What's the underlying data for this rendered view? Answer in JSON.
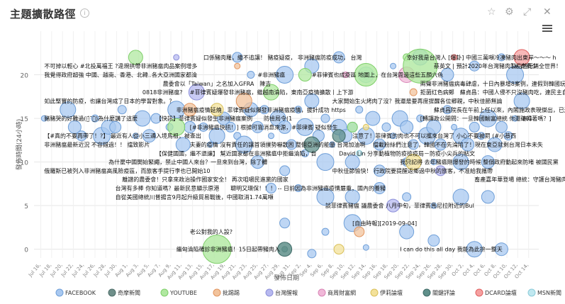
{
  "header": {
    "title": "主題擴散路徑",
    "info_icon": "info-icon",
    "toolbar": [
      "star-icon",
      "gear-icon",
      "expand-icon",
      "close-icon"
    ]
  },
  "chart_data": {
    "type": "scatter",
    "xlabel": "發佈日期",
    "ylabel": "發佈時間(24小時)",
    "x_ticks": [
      "Jul 16,",
      "Jul 18,",
      "Jul 20,",
      "Jul 22,",
      "Jul 24,",
      "Jul 26,",
      "Jul 28,",
      "Jul 30,",
      "Aug 1,",
      "Aug 3,",
      "Aug 5,",
      "Aug 7,",
      "Aug 9,",
      "Aug 11,",
      "Aug 13,",
      "Aug 15,",
      "Aug 17,",
      "Aug 19,",
      "Aug 21,",
      "Aug 23,",
      "Aug 25,",
      "Aug 27,",
      "Aug 29,",
      "Aug 31,",
      "Sep 2,",
      "Sep 4,",
      "Sep 6,",
      "Sep 8,",
      "Sep 10,",
      "Sep 12,",
      "Sep 14,",
      "Sep 16,",
      "Sep 18,",
      "Sep 20,",
      "Sep 22,",
      "Sep 24,",
      "Sep 26,",
      "Sep 28,",
      "Sep 30,",
      "Oct 2,",
      "Oct 4,",
      "Oct 6,",
      "Oct 8,",
      "Oct 10,",
      "Oct 12,",
      "Oct 14,"
    ],
    "x_range": [
      15,
      89.5
    ],
    "ylim": [
      -1,
      25
    ],
    "y_ticks": [
      0,
      5,
      10,
      15,
      20
    ],
    "grid": true,
    "legend_position": "bottom",
    "series": [
      {
        "name": "FACEBOOK",
        "color": "#a8c8f0",
        "stroke": "#6f9fd8",
        "points": [
          [
            16.5,
            15
          ],
          [
            20,
            16
          ],
          [
            21,
            14
          ],
          [
            22,
            13
          ],
          [
            24,
            15
          ],
          [
            25,
            13
          ],
          [
            26,
            14
          ],
          [
            27,
            14
          ],
          [
            28,
            16
          ],
          [
            30,
            13
          ],
          [
            31,
            15
          ],
          [
            32,
            13
          ],
          [
            33,
            15
          ],
          [
            35,
            14
          ],
          [
            36,
            16
          ],
          [
            37,
            12
          ],
          [
            38,
            14
          ],
          [
            40,
            14
          ],
          [
            41,
            12
          ],
          [
            42,
            13
          ],
          [
            43,
            15
          ],
          [
            44,
            14
          ],
          [
            45,
            13
          ],
          [
            46,
            12
          ],
          [
            47,
            16
          ],
          [
            48,
            14
          ],
          [
            49,
            16
          ],
          [
            50,
            13
          ],
          [
            51,
            15
          ],
          [
            52,
            14
          ],
          [
            53,
            12
          ],
          [
            54,
            16
          ],
          [
            55,
            14
          ],
          [
            56,
            17
          ],
          [
            57,
            13
          ],
          [
            58,
            15
          ],
          [
            59,
            12
          ],
          [
            60,
            14
          ],
          [
            61,
            13
          ],
          [
            62,
            14
          ],
          [
            63,
            16
          ],
          [
            64,
            13
          ],
          [
            65,
            15
          ],
          [
            66,
            12
          ],
          [
            67,
            14
          ],
          [
            68,
            13
          ],
          [
            69,
            15
          ],
          [
            70,
            14
          ],
          [
            71,
            12
          ],
          [
            72,
            15
          ],
          [
            73,
            13
          ],
          [
            74,
            14
          ],
          [
            75,
            12
          ],
          [
            76,
            16
          ],
          [
            77,
            14
          ],
          [
            78,
            13
          ],
          [
            79,
            12
          ],
          [
            80,
            14
          ],
          [
            81,
            13
          ],
          [
            82,
            15
          ],
          [
            83,
            12
          ],
          [
            84,
            14
          ],
          [
            85,
            13
          ],
          [
            86,
            15
          ],
          [
            87,
            17
          ],
          [
            48,
            10
          ],
          [
            52,
            9
          ],
          [
            55,
            11
          ],
          [
            58,
            10
          ],
          [
            62,
            10
          ],
          [
            66,
            9
          ],
          [
            70,
            10
          ],
          [
            74,
            10
          ],
          [
            78,
            10
          ],
          [
            82,
            10
          ],
          [
            50,
            7
          ],
          [
            54,
            7
          ],
          [
            58,
            6
          ],
          [
            62,
            6
          ],
          [
            66,
            7
          ],
          [
            70,
            6
          ],
          [
            74,
            5
          ],
          [
            78,
            6
          ],
          [
            82,
            6
          ],
          [
            52,
            3
          ],
          [
            58,
            2
          ],
          [
            62,
            3
          ],
          [
            70,
            2
          ],
          [
            74,
            1
          ],
          [
            56,
            -0.5
          ],
          [
            64,
            0.2
          ],
          [
            80,
            0
          ],
          [
            84,
            0
          ],
          [
            45,
            22
          ],
          [
            47,
            20
          ],
          [
            52,
            20
          ],
          [
            56,
            21
          ],
          [
            60,
            22
          ],
          [
            64,
            20
          ],
          [
            68,
            21
          ],
          [
            72,
            22
          ],
          [
            76,
            20
          ],
          [
            80,
            21
          ],
          [
            84,
            22
          ],
          [
            86,
            20
          ]
        ]
      },
      {
        "name": "奇摩新聞",
        "color": "#6f8f8a",
        "stroke": "#4f6f6a",
        "points": []
      },
      {
        "name": "YOUTUBE",
        "color": "#b0e8a0",
        "stroke": "#7fcf6a",
        "points": [
          [
            42,
            0
          ],
          [
            50,
            18
          ],
          [
            55,
            20
          ],
          [
            62,
            14
          ],
          [
            70,
            22
          ],
          [
            36,
            14
          ],
          [
            30,
            22
          ]
        ]
      },
      {
        "name": "批踢踢",
        "color": "#f2c39c",
        "stroke": "#e2955f",
        "points": [
          [
            45,
            21
          ],
          [
            46,
            17
          ],
          [
            38,
            16
          ],
          [
            63,
            2
          ],
          [
            71,
            18
          ]
        ]
      },
      {
        "name": "台灣醒報",
        "color": "#b7b9f0",
        "stroke": "#8c8fd9",
        "points": [
          [
            36,
            22
          ],
          [
            39,
            18
          ],
          [
            68,
            5
          ],
          [
            75,
            9
          ]
        ]
      },
      {
        "name": "商周財富網",
        "color": "#f0b8d8",
        "stroke": "#d985b6",
        "points": [
          [
            61,
            20
          ],
          [
            70,
            20
          ]
        ]
      },
      {
        "name": "伊莉論壇",
        "color": "#f3e19a",
        "stroke": "#d9c05a",
        "points": [
          [
            64,
            14
          ],
          [
            71,
            10
          ],
          [
            42,
            16
          ],
          [
            60,
            0
          ]
        ]
      },
      {
        "name": "關鍵評論",
        "color": "#5f8f8a",
        "stroke": "#3f6a66",
        "points": [
          [
            52,
            0
          ],
          [
            56,
            12
          ],
          [
            60,
            13
          ]
        ]
      },
      {
        "name": "DCARD論壇",
        "color": "#f5a0a0",
        "stroke": "#e06060",
        "points": [
          [
            77,
            22
          ],
          [
            87,
            22
          ]
        ]
      },
      {
        "name": "MSN新聞",
        "color": "#c0e8f0",
        "stroke": "#8ccbd9",
        "points": [
          [
            63,
            11
          ],
          [
            64,
            20
          ]
        ]
      }
    ],
    "annotations": [
      {
        "text": "口係豬肉羅，繼不追讓！ 豬疫疑疫， 非洲豬瘟防疫成功， 台灣",
        "x": 40,
        "y": 22
      },
      {
        "text": "幸好我是台灣人 [爆卦] 中國三萬噸冷凍豬肉出東岸～～～ h",
        "x": 70,
        "y": 22
      },
      {
        "text": "不可掉以輕心 #北投萬福王 ?違規拱帶非洲豬瘟肉品案例增多",
        "x": 16.5,
        "y": 21
      },
      {
        "text": "蔡英文 | 預計2020年台灣豬肉製品將行銷全世界！",
        "x": 74,
        "y": 21
      },
      {
        "text": "（# 奇費少",
        "x": 85,
        "y": 21
      },
      {
        "text": "我覺得政府超強 中國、越南、香港、北韓..各大亞洲國家都淪",
        "x": 16.5,
        "y": 20
      },
      {
        "text": "#非洲豬瘟",
        "x": 48,
        "y": 20
      },
      {
        "text": "#菲律賓也成疫區 地圖上，在台灣周邊這些五顏六色",
        "x": 56,
        "y": 20
      },
      {
        "text": "農委會以「Taiwan」之名加入GFRA　陳吉",
        "x": 34,
        "y": 19
      },
      {
        "text": "兩聲非洲豬瘟病毒肆虐，十日內暴增8案例，連假到韓國玩記得回國",
        "x": 72,
        "y": 19
      },
      {
        "text": "0818非洲豬瘟?",
        "x": 31,
        "y": 18
      },
      {
        "text": "#菲律賓疑爆發非洲豬瘟，繼越南淪陷，東南亞疫情擴散丨上下游",
        "x": 38,
        "y": 18
      },
      {
        "text": "拒菌红色病鄭　蘇貞昌：中國人侵不只沒豬肉吃，連民主自由都會消",
        "x": 72,
        "y": 18
      },
      {
        "text": "如此堅實的防疫，也讓台灣成了日本的學習對象。？",
        "x": 16.5,
        "y": 17
      },
      {
        "text": "大家開始生火烤肉了沒？我還是要再度提醒各位鄉親，中秋佳節無論",
        "x": 59,
        "y": 17
      },
      {
        "text": "非洲豬瘟疫情延燒　菲律賓疑似爆發非洲豬瘟疫情，拔針成功 https",
        "x": 36,
        "y": 16
      },
      {
        "text": "蘇貞昌院長在午前上任以來，內閣施政表現傑出，已連續多個月獲得",
        "x": 74,
        "y": 16
      },
      {
        "text": "豬豬哭的好難過(ฅ́˘ฅ̀)為什麼講了這麼",
        "x": 16.5,
        "y": 15
      },
      {
        "text": "【快訊】菲律賓疑似發生非洲豬瘟案例　　防檢局令(1",
        "x": 33,
        "y": 15
      },
      {
        "text": "[轉譯政公開問：一旦韓國輸富總統 你還確得著嗎？]",
        "x": 72,
        "y": 15
      },
      {
        "text": "201",
        "x": 87,
        "y": 15
      },
      {
        "text": "[#非洲豬瘟快訊！] 根據可靠消息來源，#菲律賓 疑似發生",
        "x": 38,
        "y": 14
      },
      {
        "text": "【#真的不要再帶了！?】 最近有人從小三通入境馬祖，被查出",
        "x": 16.5,
        "y": 13
      },
      {
        "text": "注意了！菲律賓的肉也不可以攜來台灣了 小心不要被罰 (#小蔡西",
        "x": 62,
        "y": 13
      },
      {
        "text": "非洲豬瘟最新近況 不容錯過！！ 擋致影片",
        "x": 16.5,
        "y": 12
      },
      {
        "text": "夫妻的疫情 沒有責任的讓首領撲勢嚇散困 整個亞洲的能量 台灣加油啊",
        "x": 38,
        "y": 12
      },
      {
        "text": "擋載粉絲們注意了，韓國不在先淪陷了！現在東亞就剩台灣日本未失",
        "x": 65,
        "y": 12
      },
      {
        "text": "【保健國國，繼不退讓】 幫近國家都在非洲豬瘟中拒繼淪陷，台",
        "x": 33,
        "y": 11
      },
      {
        "text": "David Lin 分享動植物防疫檢疫局－防疫小尖兵的粘文",
        "x": 60,
        "y": 11
      },
      {
        "text": "為什麼中國開始緊繩，禁止中國人來台？一旦來到台灣，除了體",
        "x": 26,
        "y": 10
      },
      {
        "text": "我只記得 去年豬瘟剛爆發的時候 整個政府動起來防堵 被國民黨",
        "x": 69,
        "y": 10
      },
      {
        "text": "俄羅斯已被列入非洲豬瘟高風險疫區，而旅客手提行李也已開始10",
        "x": 16.5,
        "y": 9
      },
      {
        "text": "中秋佳節愉快！ 行政院要提醒返鄉過中秋的旅客，不准給我攜帶",
        "x": 59,
        "y": 9
      },
      {
        "text": "離譜的農委會！只拿來政治操作國家安全！ 再次咀嚼民進黨的國家",
        "x": 28,
        "y": 8
      },
      {
        "text": "畜產嘉年華登場 總統：守護台灣豬肉產業",
        "x": 80,
        "y": 8
      },
      {
        "text": "台灣有多棒 你知道嗎？最新民意顯示原港",
        "x": 27,
        "y": 7
      },
      {
        "text": "聰明又環保！！！ -- 日前因為非洲豬瘟疫情嚴重，國內的養豬",
        "x": 44,
        "y": 7
      },
      {
        "text": "自從美國總統川普揚言9月起升級貿易戰後，中國取消1.74萬噸",
        "x": 27,
        "y": 6
      },
      {
        "text": "談菲律賓豬瘟 議農委會 八月中旬，菲律賓馬尼拉附近的Bul",
        "x": 58,
        "y": 5
      },
      {
        "text": "[自由時報][2019-09-04]",
        "x": 62,
        "y": 3
      },
      {
        "text": "老公對我的人設?",
        "x": 38,
        "y": 2
      },
      {
        "text": "繼匈淪陷確診非洲豬瘟！15日起帶豬肉入",
        "x": 36,
        "y": 0
      },
      {
        "text": "I can do this all day 我能為此拚一整天",
        "x": 69,
        "y": 0
      }
    ]
  },
  "legend": [
    {
      "name": "FACEBOOK",
      "color": "#a8c8f0",
      "stroke": "#6f9fd8"
    },
    {
      "name": "奇摩新聞",
      "color": "#6f8f8a",
      "stroke": "#4f6f6a"
    },
    {
      "name": "YOUTUBE",
      "color": "#b0e8a0",
      "stroke": "#7fcf6a"
    },
    {
      "name": "批踢踢",
      "color": "#f2c39c",
      "stroke": "#e2955f"
    },
    {
      "name": "台灣醒報",
      "color": "#b7b9f0",
      "stroke": "#8c8fd9"
    },
    {
      "name": "商周財富網",
      "color": "#f0b8d8",
      "stroke": "#d985b6"
    },
    {
      "name": "伊莉論壇",
      "color": "#f3e19a",
      "stroke": "#d9c05a"
    },
    {
      "name": "關鍵評論",
      "color": "#5f8f8a",
      "stroke": "#3f6a66"
    },
    {
      "name": "DCARD論壇",
      "color": "#f5a0a0",
      "stroke": "#e06060"
    },
    {
      "name": "MSN新聞",
      "color": "#c0e8f0",
      "stroke": "#8ccbd9"
    }
  ]
}
